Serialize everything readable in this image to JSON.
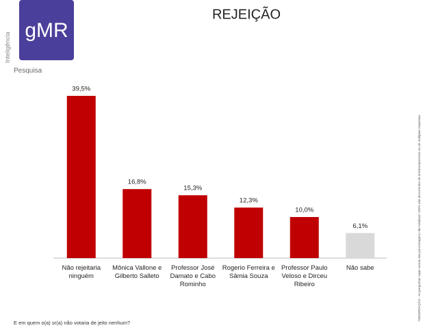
{
  "logo": {
    "brand": "gMR",
    "vertical": "Inteligência",
    "sub": "Pesquisa"
  },
  "side_note": "*OBSERVAÇÃO - As perguntas cujas somas das porcentagens não totalizam 100% são decorrentes de arredondamentos ou de múltiplas respostas",
  "chart_data": {
    "type": "bar",
    "title": "REJEIÇÃO",
    "categories": [
      "Não rejeitaria ninguém",
      "Mônica Vallone e Gilberto Salleto",
      "Professor José Damato e Cabo Rominho",
      "Rogerio Ferreira e Sâmia Souza",
      "Professor Paulo Veloso e Dirceu Ribeiro",
      "Não sabe"
    ],
    "values": [
      39.5,
      16.8,
      15.3,
      12.3,
      10.0,
      6.1
    ],
    "value_labels": [
      "39,5%",
      "16,8%",
      "15,3%",
      "12,3%",
      "10,0%",
      "6,1%"
    ],
    "colors": [
      "#c00000",
      "#c00000",
      "#c00000",
      "#c00000",
      "#c00000",
      "#d9d9d9"
    ],
    "footnote": "E em quem o(a) sr(a) não votaria de jeito nenhum?"
  }
}
